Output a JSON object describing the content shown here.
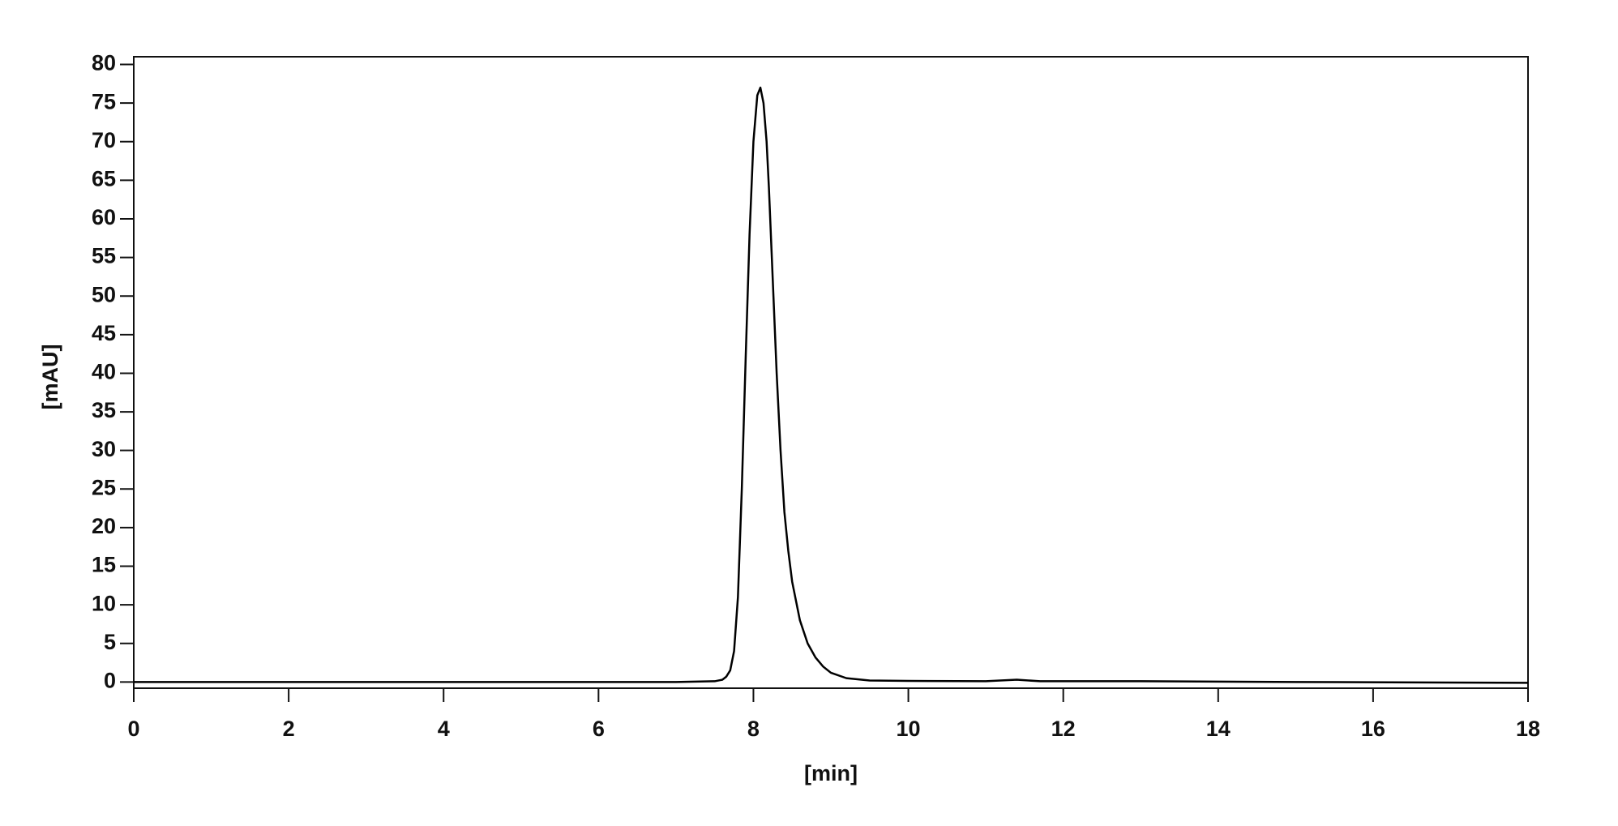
{
  "chart_data": {
    "type": "line",
    "xlabel": "[min]",
    "ylabel": "[mAU]",
    "x": [
      0,
      2,
      4,
      6,
      7,
      7.5,
      7.6,
      7.65,
      7.7,
      7.75,
      7.8,
      7.85,
      7.9,
      7.95,
      8.0,
      8.05,
      8.09,
      8.13,
      8.17,
      8.2,
      8.25,
      8.3,
      8.35,
      8.4,
      8.45,
      8.5,
      8.6,
      8.7,
      8.8,
      8.9,
      9.0,
      9.2,
      9.5,
      10,
      11,
      11.4,
      11.7,
      13,
      15,
      18
    ],
    "values": [
      0,
      0,
      0,
      0,
      0,
      0.1,
      0.3,
      0.7,
      1.5,
      4,
      11,
      25,
      42,
      58,
      70,
      76,
      77,
      75,
      70,
      64,
      52,
      40,
      30,
      22,
      17,
      13,
      8,
      5,
      3.2,
      2,
      1.2,
      0.5,
      0.2,
      0.15,
      0.1,
      0.3,
      0.1,
      0.1,
      0,
      -0.1
    ],
    "color": "#000000",
    "xlim": [
      0,
      18
    ],
    "xticks": [
      0,
      2,
      4,
      6,
      8,
      10,
      12,
      14,
      16,
      18
    ],
    "ylim": [
      -0.8,
      81
    ],
    "yticks": [
      0,
      5,
      10,
      15,
      20,
      25,
      30,
      35,
      40,
      45,
      50,
      55,
      60,
      65,
      70,
      75,
      80
    ],
    "grid": false
  }
}
